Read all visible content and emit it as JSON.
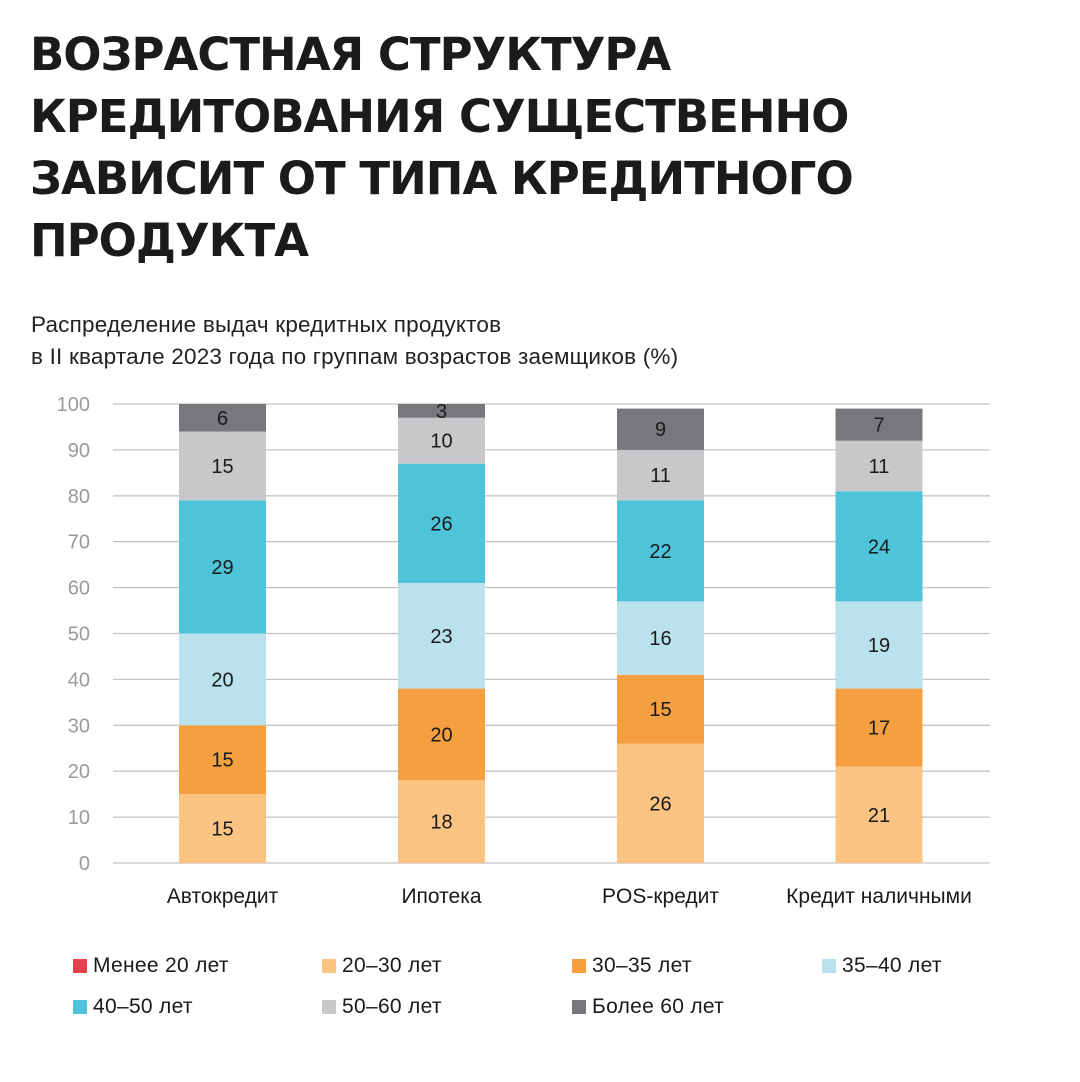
{
  "header": {
    "title_lines": [
      "ВОЗРАСТНАЯ СТРУКТУРА",
      "КРЕДИТОВАНИЯ СУЩЕСТВЕННО",
      "ЗАВИСИТ ОТ ТИПА КРЕДИТНОГО",
      "ПРОДУКТА"
    ],
    "subtitle_lines": [
      "Распределение выдач кредитных продуктов",
      "в II квартале 2023 года по группам возрастов заемщиков (%)"
    ]
  },
  "chart_data": {
    "type": "bar",
    "stacked": true,
    "title": "Распределение выдач кредитных продуктов в II квартале 2023 года по группам возрастов заемщиков (%)",
    "xlabel": "",
    "ylabel": "",
    "ylim": [
      0,
      100
    ],
    "yticks": [
      0,
      10,
      20,
      30,
      40,
      50,
      60,
      70,
      80,
      90,
      100
    ],
    "grid": true,
    "legend_position": "bottom",
    "categories": [
      "Автокредит",
      "Ипотека",
      "POS-кредит",
      "Кредит наличными"
    ],
    "series": [
      {
        "name": "Менее 20 лет",
        "color": "#e5404e",
        "values": [
          0,
          0,
          0,
          0
        ],
        "labels_shown": false
      },
      {
        "name": "20–30 лет",
        "color": "#fbc483",
        "values": [
          15,
          18,
          26,
          21
        ]
      },
      {
        "name": "30–35 лет",
        "color": "#f5a040",
        "values": [
          15,
          20,
          15,
          17
        ]
      },
      {
        "name": "35–40 лет",
        "color": "#b9e2ec",
        "values": [
          20,
          23,
          16,
          19
        ]
      },
      {
        "name": "40–50 лет",
        "color": "#4fc3d9",
        "values": [
          29,
          26,
          22,
          24
        ]
      },
      {
        "name": "50–60 лет",
        "color": "#c8c8ca",
        "values": [
          15,
          10,
          11,
          11
        ]
      },
      {
        "name": "Более 60 лет",
        "color": "#77787c",
        "values": [
          6,
          3,
          9,
          7
        ]
      }
    ],
    "legend_order": [
      "Менее 20 лет",
      "20–30 лет",
      "30–35 лет",
      "35–40 лет",
      "40–50 лет",
      "50–60 лет",
      "Более 60 лет"
    ]
  }
}
